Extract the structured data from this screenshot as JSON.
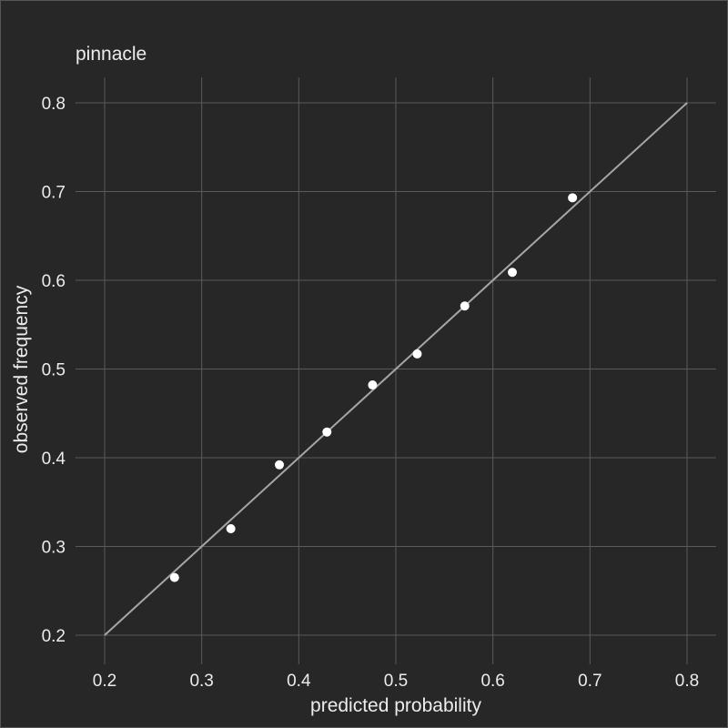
{
  "chart_data": {
    "type": "scatter",
    "title": "pinnacle",
    "xlabel": "predicted probability",
    "ylabel": "observed frequency",
    "xlim": [
      0.2,
      0.8
    ],
    "ylim": [
      0.2,
      0.8
    ],
    "xticks": [
      "0.2",
      "0.3",
      "0.4",
      "0.5",
      "0.6",
      "0.7",
      "0.8"
    ],
    "yticks": [
      "0.2",
      "0.3",
      "0.4",
      "0.5",
      "0.6",
      "0.7",
      "0.8"
    ],
    "grid": true,
    "reference_line": {
      "x": [
        0.2,
        0.8
      ],
      "y": [
        0.2,
        0.8
      ],
      "color": "#a6a6a6"
    },
    "points": {
      "x": [
        0.272,
        0.33,
        0.38,
        0.429,
        0.476,
        0.522,
        0.571,
        0.62,
        0.682
      ],
      "y": [
        0.265,
        0.32,
        0.392,
        0.429,
        0.482,
        0.517,
        0.571,
        0.609,
        0.693
      ],
      "color": "#ffffff"
    },
    "colors": {
      "background": "#272727",
      "grid": "#5a5a5a",
      "text": "#ececec"
    }
  }
}
